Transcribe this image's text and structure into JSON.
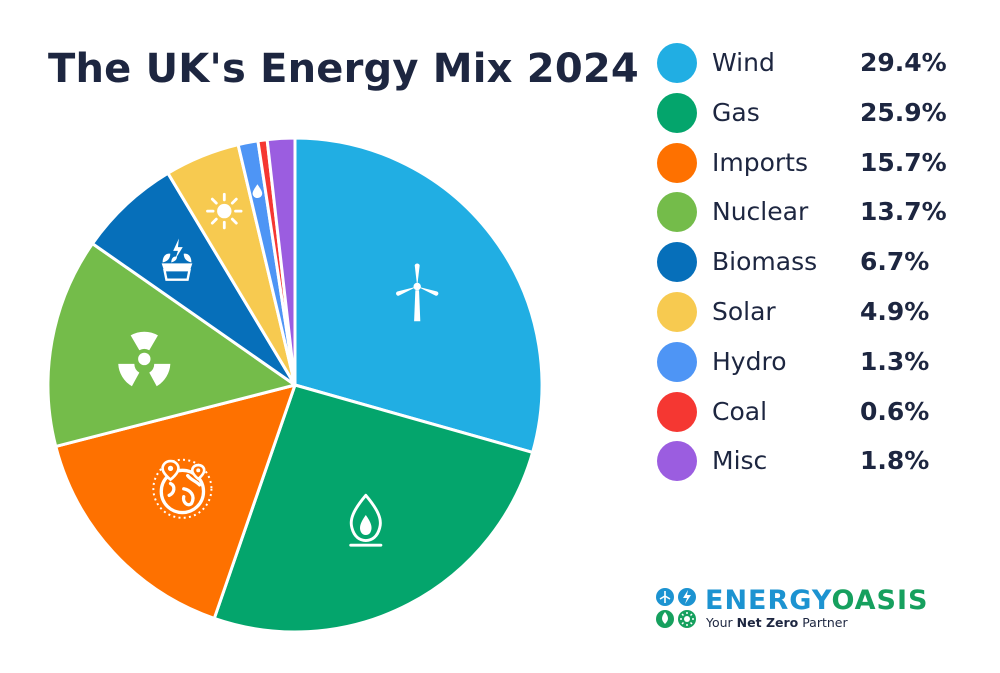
{
  "chart_data": {
    "type": "pie",
    "title": "The UK's Energy Mix 2024",
    "unit": "%",
    "categories": [
      "Wind",
      "Gas",
      "Imports",
      "Nuclear",
      "Biomass",
      "Solar",
      "Hydro",
      "Coal",
      "Misc"
    ],
    "values": [
      29.4,
      25.9,
      15.7,
      13.7,
      6.7,
      4.9,
      1.3,
      0.6,
      1.8
    ],
    "value_labels": [
      "29.4%",
      "25.9%",
      "15.7%",
      "13.7%",
      "6.7%",
      "4.9%",
      "1.3%",
      "0.6%",
      "1.8%"
    ],
    "colors": [
      "#21aee3",
      "#04a56c",
      "#fe7100",
      "#74bc4a",
      "#066fba",
      "#f7ca50",
      "#4e95f5",
      "#f53732",
      "#9b5de0"
    ],
    "icons": [
      "wind-turbine-icon",
      "gas-flame-icon",
      "globe-icon",
      "radiation-icon",
      "biomass-icon",
      "sun-icon",
      "water-drop-icon",
      "",
      ""
    ],
    "legend_position": "right",
    "start_angle": "top, clockwise"
  },
  "brand": {
    "name_part1": "ENERGY",
    "name_part2": "OASIS",
    "tagline_pre": "Your ",
    "tagline_bold": "Net Zero",
    "tagline_post": " Partner",
    "colors": {
      "blue": "#1c93d1",
      "green": "#16a05e"
    }
  }
}
